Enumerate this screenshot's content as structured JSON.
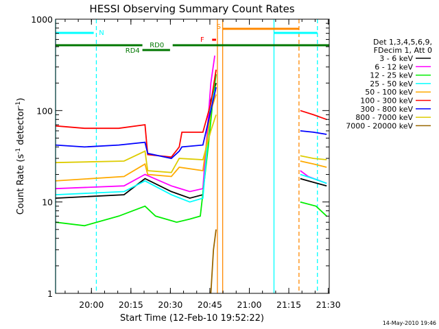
{
  "chart_data": {
    "type": "line",
    "title": "HESSI Observing Summary Count Rates",
    "xlabel": "Start Time (12-Feb-10 19:52:22)",
    "ylabel_main": "Count Rate (s",
    "ylabel_sup1": "-1",
    "ylabel_mid": " detector",
    "ylabel_sup2": "-1",
    "ylabel_end": ")",
    "x_range_min": [
      -6,
      98
    ],
    "y_range": [
      1,
      1000
    ],
    "y_scale": "log",
    "x_ticks": [
      {
        "min": 7.63,
        "label": "20:00"
      },
      {
        "min": 22.63,
        "label": "20:15"
      },
      {
        "min": 37.63,
        "label": "20:30"
      },
      {
        "min": 52.63,
        "label": "20:45"
      },
      {
        "min": 67.63,
        "label": "21:00"
      },
      {
        "min": 82.63,
        "label": "21:15"
      },
      {
        "min": 97.63,
        "label": "21:30"
      }
    ],
    "y_ticks": [
      {
        "value": 1,
        "label": "1"
      },
      {
        "value": 10,
        "label": "10"
      },
      {
        "value": 100,
        "label": "100"
      },
      {
        "value": 1000,
        "label": "1000"
      }
    ],
    "legend_header": [
      "Det 1,3,4,5,6,9,",
      "FDecim 1, Att 0"
    ],
    "series": [
      {
        "name": "3 - 6 keV",
        "color": "#000000",
        "points": [
          [
            -6,
            11
          ],
          [
            20,
            12
          ],
          [
            28,
            18
          ],
          [
            38,
            13
          ],
          [
            45,
            11
          ],
          [
            50,
            12
          ],
          [
            53,
            130
          ],
          [
            55,
            200
          ],
          [
            55.5,
            0
          ],
          [
            86.5,
            0
          ],
          [
            87,
            18
          ],
          [
            90,
            17
          ],
          [
            97,
            15
          ]
        ]
      },
      {
        "name": "6 - 12 keV",
        "color": "#ff00ff",
        "points": [
          [
            -6,
            14
          ],
          [
            20,
            15
          ],
          [
            28,
            20
          ],
          [
            38,
            15
          ],
          [
            45,
            13
          ],
          [
            50,
            14
          ],
          [
            53,
            200
          ],
          [
            54.5,
            400
          ],
          [
            55.5,
            0
          ],
          [
            86.5,
            0
          ],
          [
            87,
            22
          ],
          [
            90,
            19
          ],
          [
            97,
            16
          ]
        ]
      },
      {
        "name": "12 - 25 keV",
        "color": "#00ee00",
        "points": [
          [
            -6,
            6
          ],
          [
            5,
            5.5
          ],
          [
            18,
            7
          ],
          [
            28,
            9
          ],
          [
            32,
            7
          ],
          [
            40,
            6
          ],
          [
            45,
            6.5
          ],
          [
            49,
            7
          ],
          [
            52,
            40
          ],
          [
            54,
            150
          ],
          [
            55,
            250
          ],
          [
            55.5,
            0
          ],
          [
            86.5,
            0
          ],
          [
            87,
            10
          ],
          [
            93,
            9
          ],
          [
            97,
            7
          ]
        ]
      },
      {
        "name": "25 - 50 keV",
        "color": "#00ffff",
        "points": [
          [
            -6,
            12
          ],
          [
            20,
            13
          ],
          [
            28,
            17
          ],
          [
            38,
            12
          ],
          [
            45,
            10
          ],
          [
            50,
            11
          ],
          [
            53,
            120
          ],
          [
            55,
            180
          ],
          [
            55.5,
            0
          ],
          [
            86.5,
            0
          ],
          [
            87,
            20
          ],
          [
            92,
            18
          ],
          [
            97,
            16
          ]
        ]
      },
      {
        "name": "50 - 100 keV",
        "color": "#ffaa00",
        "points": [
          [
            -6,
            17
          ],
          [
            20,
            19
          ],
          [
            28,
            26
          ],
          [
            29,
            20
          ],
          [
            38,
            19
          ],
          [
            41,
            24
          ],
          [
            50,
            22
          ],
          [
            53,
            100
          ],
          [
            55,
            150
          ],
          [
            55.5,
            0
          ],
          [
            86.5,
            0
          ],
          [
            87,
            28
          ],
          [
            92,
            26
          ],
          [
            97,
            24
          ]
        ]
      },
      {
        "name": "100 - 300 keV",
        "color": "#ff0000",
        "points": [
          [
            -6,
            68
          ],
          [
            5,
            64
          ],
          [
            18,
            64
          ],
          [
            28,
            70
          ],
          [
            29,
            33
          ],
          [
            38,
            31
          ],
          [
            41,
            40
          ],
          [
            42,
            58
          ],
          [
            50,
            58
          ],
          [
            53,
            120
          ],
          [
            55,
            280
          ],
          [
            55.5,
            0
          ],
          [
            86.5,
            0
          ],
          [
            87,
            100
          ],
          [
            92,
            90
          ],
          [
            97,
            80
          ]
        ]
      },
      {
        "name": "300 - 800 keV",
        "color": "#0000ff",
        "points": [
          [
            -6,
            42
          ],
          [
            5,
            40
          ],
          [
            18,
            42
          ],
          [
            28,
            45
          ],
          [
            29,
            34
          ],
          [
            38,
            30
          ],
          [
            41,
            36
          ],
          [
            42,
            40
          ],
          [
            50,
            42
          ],
          [
            53,
            100
          ],
          [
            55,
            180
          ],
          [
            55.5,
            0
          ],
          [
            86.5,
            0
          ],
          [
            87,
            60
          ],
          [
            92,
            58
          ],
          [
            97,
            55
          ]
        ]
      },
      {
        "name": "800 - 7000 keV",
        "color": "#ddcc00",
        "points": [
          [
            -6,
            27
          ],
          [
            20,
            28
          ],
          [
            28,
            36
          ],
          [
            29,
            22
          ],
          [
            38,
            21
          ],
          [
            41,
            30
          ],
          [
            50,
            29
          ],
          [
            53,
            60
          ],
          [
            55,
            90
          ],
          [
            55.5,
            0
          ],
          [
            86.5,
            0
          ],
          [
            87,
            32
          ],
          [
            92,
            30
          ],
          [
            97,
            29
          ]
        ]
      },
      {
        "name": "7000 - 20000 keV",
        "color": "#996600",
        "points": [
          [
            53,
            1
          ],
          [
            54,
            3
          ],
          [
            55,
            5
          ],
          [
            55.5,
            0
          ]
        ]
      }
    ],
    "vertical_markers": [
      {
        "min": -6,
        "color": "#00ffff",
        "style": "solid"
      },
      {
        "min": 9.5,
        "color": "#00ffff",
        "style": "dashed"
      },
      {
        "min": 55.5,
        "color": "#ff8800",
        "style": "solid"
      },
      {
        "min": 57.5,
        "color": "#ff8800",
        "style": "solid"
      },
      {
        "min": 77,
        "color": "#00ffff",
        "style": "solid"
      },
      {
        "min": 86.5,
        "color": "#ff8800",
        "style": "dashed"
      },
      {
        "min": 93.5,
        "color": "#00ffff",
        "style": "dashed"
      }
    ],
    "annotations": [
      {
        "label": "N",
        "color": "#00ffff"
      },
      {
        "label": "S",
        "color": "#ff8800"
      },
      {
        "label": "F",
        "color": "#ff0000"
      },
      {
        "label": "RD0",
        "color": "#007700"
      },
      {
        "label": "RD4",
        "color": "#007700"
      }
    ],
    "footer": "14-May-2010 19:46"
  }
}
